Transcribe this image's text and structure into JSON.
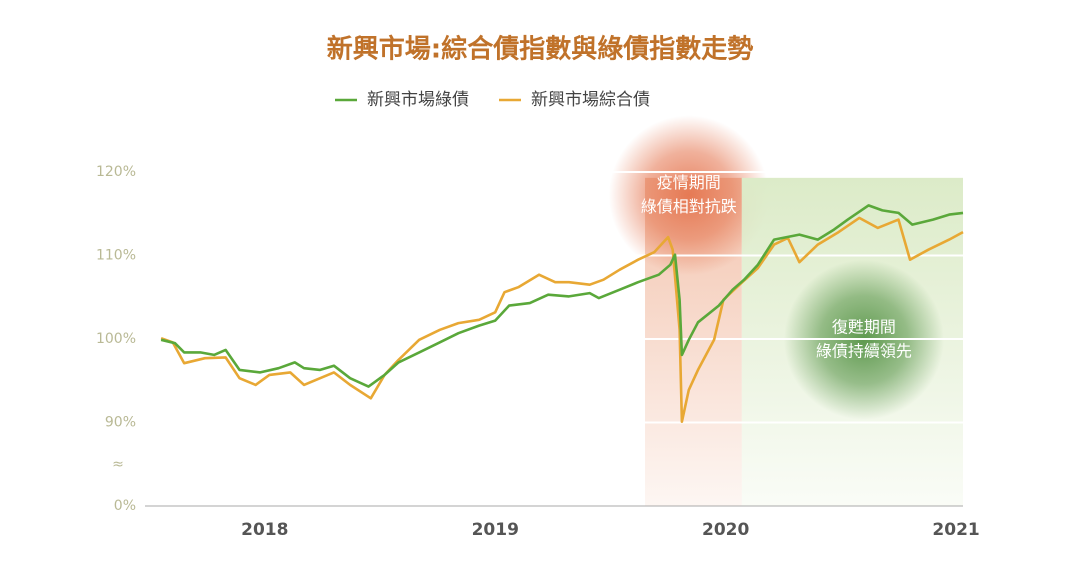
{
  "chart_data": {
    "type": "line",
    "title": "新興市場:綜合債指數與綠債指數走勢",
    "xlim": [
      2017.48,
      2021.03
    ],
    "xticks": [
      2018,
      2019,
      2020,
      2021
    ],
    "ylim": [
      80,
      120
    ],
    "yticks": [
      {
        "value": 90,
        "label": "90%"
      },
      {
        "value": 100,
        "label": "100%"
      },
      {
        "value": 110,
        "label": "110%"
      },
      {
        "value": 120,
        "label": "120%"
      }
    ],
    "ybreak": {
      "label": "0%",
      "symbol": "≈"
    },
    "grid": true,
    "legend": "top",
    "series": [
      {
        "name": "新興市場綠債",
        "color": "#5aa83a",
        "x": [
          2017.55,
          2017.61,
          2017.65,
          2017.72,
          2017.78,
          2017.83,
          2017.89,
          2017.98,
          2018.06,
          2018.13,
          2018.17,
          2018.24,
          2018.3,
          2018.37,
          2018.45,
          2018.52,
          2018.58,
          2018.67,
          2018.76,
          2018.84,
          2018.93,
          2019.0,
          2019.06,
          2019.15,
          2019.23,
          2019.32,
          2019.41,
          2019.45,
          2019.54,
          2019.62,
          2019.71,
          2019.76,
          2019.78,
          2019.8,
          2019.81,
          2019.84,
          2019.88,
          2019.97,
          2020.03,
          2020.08,
          2020.14,
          2020.21,
          2020.32,
          2020.4,
          2020.47,
          2020.53,
          2020.62,
          2020.68,
          2020.75,
          2020.81,
          2020.9,
          2020.97,
          2021.03
        ],
        "values": [
          99.9,
          99.5,
          98.4,
          98.4,
          98.1,
          98.7,
          96.3,
          96.0,
          96.5,
          97.2,
          96.5,
          96.3,
          96.8,
          95.3,
          94.3,
          95.7,
          97.2,
          98.4,
          99.6,
          100.7,
          101.6,
          102.2,
          104.0,
          104.3,
          105.3,
          105.1,
          105.5,
          104.9,
          105.9,
          106.8,
          107.7,
          108.9,
          110.1,
          104.7,
          98.1,
          99.9,
          102.0,
          104.0,
          105.9,
          107.1,
          108.9,
          111.9,
          112.5,
          111.9,
          113.1,
          114.3,
          116.0,
          115.4,
          115.1,
          113.7,
          114.3,
          114.9,
          115.1
        ]
      },
      {
        "name": "新興市場綜合債",
        "color": "#e8a834",
        "x": [
          2017.55,
          2017.6,
          2017.65,
          2017.74,
          2017.83,
          2017.89,
          2017.96,
          2018.02,
          2018.11,
          2018.17,
          2018.24,
          2018.3,
          2018.37,
          2018.46,
          2018.52,
          2018.58,
          2018.67,
          2018.76,
          2018.84,
          2018.93,
          2019.0,
          2019.04,
          2019.1,
          2019.19,
          2019.26,
          2019.32,
          2019.41,
          2019.47,
          2019.54,
          2019.62,
          2019.69,
          2019.75,
          2019.77,
          2019.8,
          2019.81,
          2019.84,
          2019.88,
          2019.95,
          2019.99,
          2020.06,
          2020.14,
          2020.21,
          2020.27,
          2020.32,
          2020.4,
          2020.49,
          2020.58,
          2020.66,
          2020.75,
          2020.8,
          2020.88,
          2020.97,
          2021.03
        ],
        "values": [
          100.1,
          99.6,
          97.1,
          97.7,
          97.8,
          95.3,
          94.5,
          95.7,
          96.0,
          94.5,
          95.3,
          96.0,
          94.5,
          92.9,
          95.7,
          97.5,
          99.9,
          101.1,
          101.9,
          102.3,
          103.2,
          105.6,
          106.2,
          107.7,
          106.8,
          106.8,
          106.5,
          107.1,
          108.3,
          109.5,
          110.4,
          112.2,
          110.7,
          101.1,
          90.1,
          93.9,
          96.3,
          99.9,
          104.7,
          106.5,
          108.5,
          111.3,
          112.1,
          109.2,
          111.3,
          112.8,
          114.5,
          113.3,
          114.3,
          109.5,
          110.7,
          111.9,
          112.8
        ]
      }
    ],
    "regions": [
      {
        "x": [
          2019.65,
          2020.07
        ],
        "top": 119.3,
        "color": "#f3c4ae",
        "glow": "#e4714a",
        "label_at": [
          2019.84,
          117.2
        ],
        "label": [
          "疫情期間",
          "綠債相對抗跌"
        ]
      },
      {
        "x": [
          2020.07,
          2021.03
        ],
        "top": 119.3,
        "color": "#dcebc8",
        "glow": "#4f8f3f",
        "label_at": [
          2020.6,
          99.9
        ],
        "label": [
          "復甦期間",
          "綠債持續領先"
        ]
      }
    ]
  }
}
